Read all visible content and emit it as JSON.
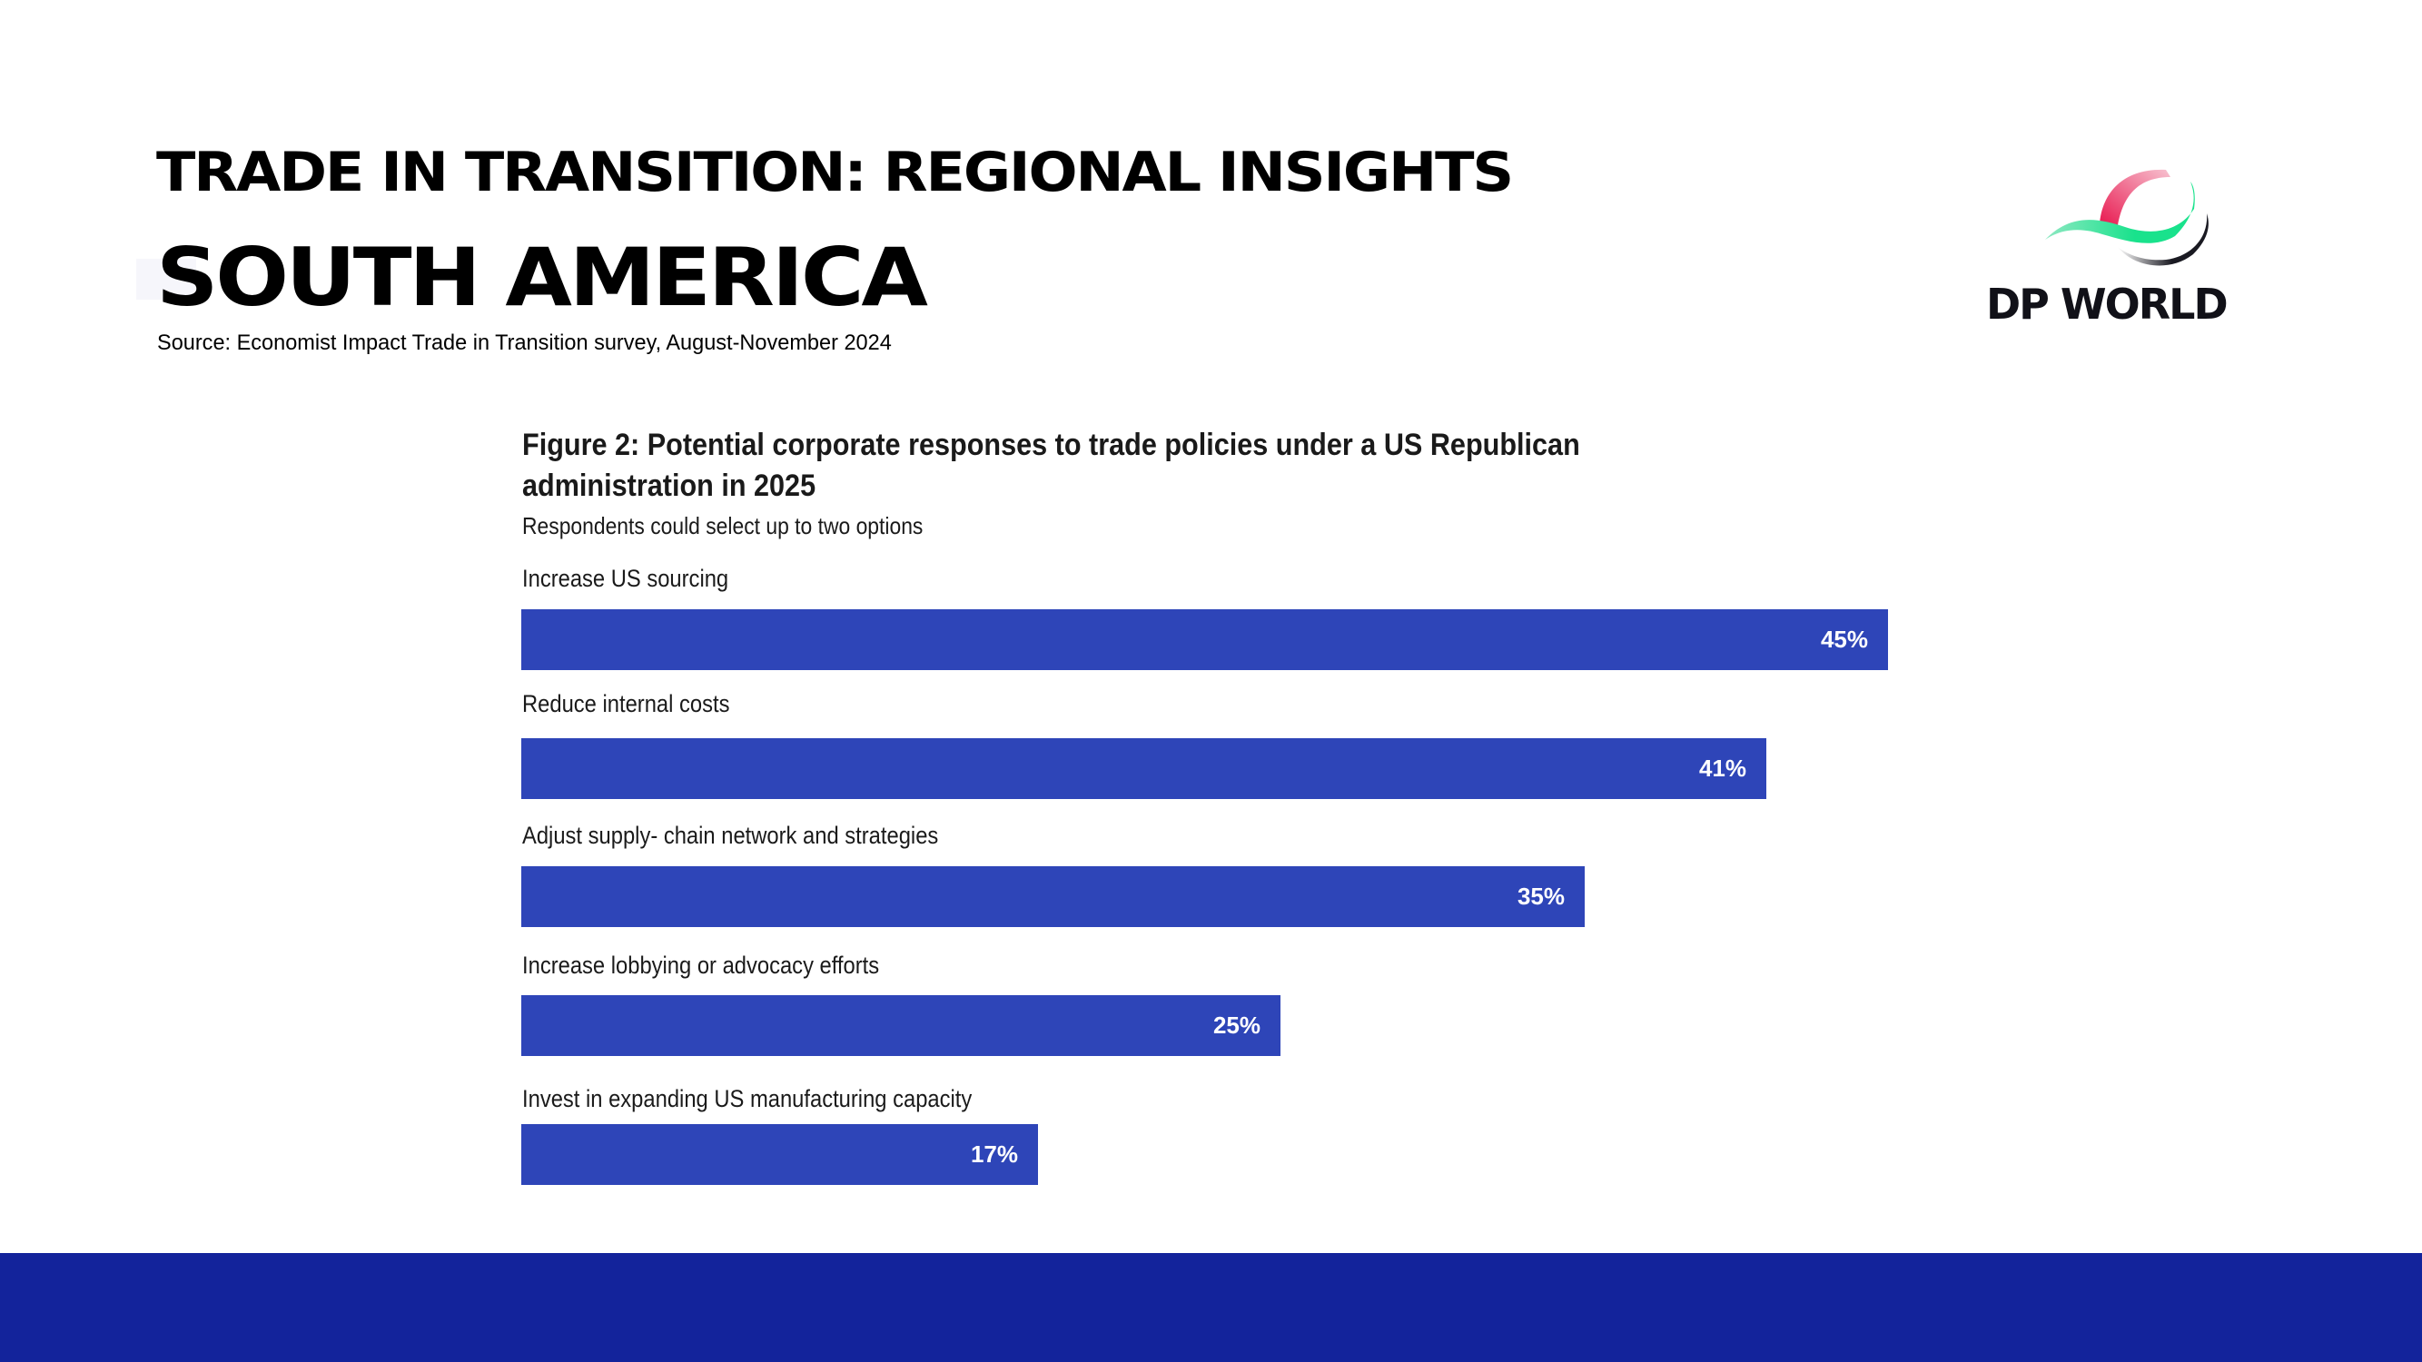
{
  "header": {
    "title": "TRADE IN TRANSITION: REGIONAL INSIGHTS",
    "region": "SOUTH AMERICA",
    "source": "Source: Economist Impact Trade in Transition survey, August-November 2024"
  },
  "logo": {
    "text": "DP WORLD",
    "icon": "dp-world-globe-icon",
    "colors": {
      "red": "#e8184f",
      "green": "#19e28c",
      "dark": "#1a1a22"
    }
  },
  "colors": {
    "bar": "#2e45b8",
    "footer": "#13239b",
    "bar_label": "#ffffff"
  },
  "chart_data": {
    "type": "bar",
    "orientation": "horizontal",
    "title": "Figure 2: Potential corporate responses to trade policies under a US Republican administration in 2025",
    "subtitle": "Respondents could select up to two options",
    "xlabel": "",
    "ylabel": "",
    "unit": "%",
    "xlim": [
      0,
      45
    ],
    "grid": false,
    "legend": "none",
    "categories": [
      "Increase US sourcing",
      "Reduce internal costs",
      "Adjust supply- chain network and strategies",
      "Increase lobbying or advocacy efforts",
      "Invest in expanding US manufacturing capacity"
    ],
    "values": [
      45,
      41,
      35,
      25,
      17
    ],
    "value_labels": [
      "45%",
      "41%",
      "35%",
      "25%",
      "17%"
    ]
  }
}
